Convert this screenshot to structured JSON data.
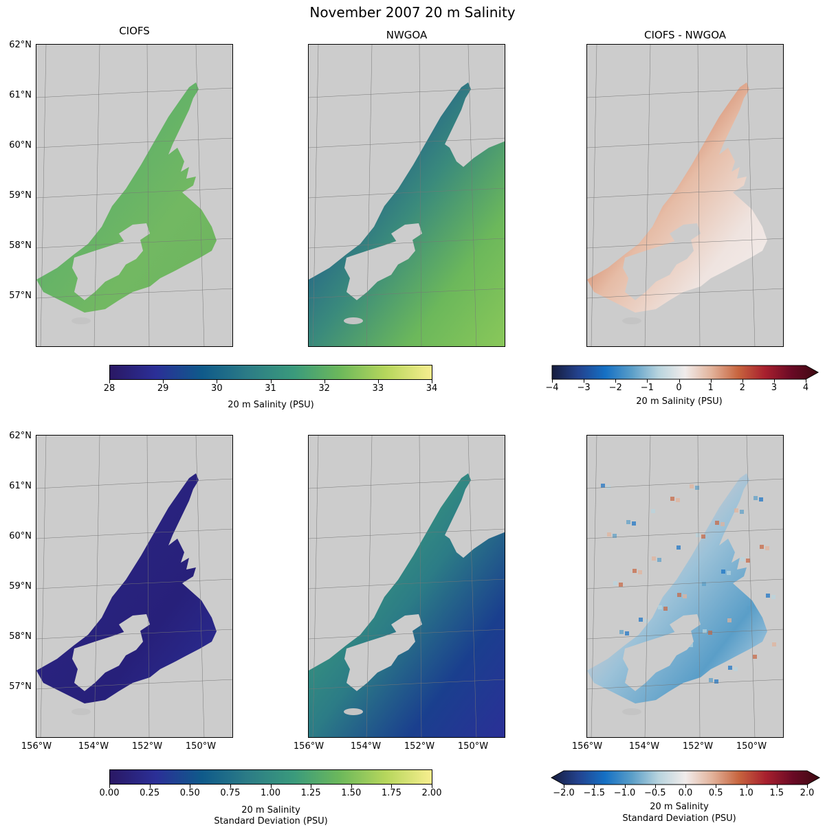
{
  "figure": {
    "title": "November 2007 20 m Salinity",
    "panel_titles": [
      "CIOFS",
      "NWGOA",
      "CIOFS - NWGOA"
    ],
    "lat_ticks": [
      "62°N",
      "61°N",
      "60°N",
      "59°N",
      "58°N",
      "57°N"
    ],
    "lon_ticks": [
      "156°W",
      "154°W",
      "152°W",
      "150°W"
    ],
    "colors": {
      "land": "#cccccc",
      "water_mask": "#ffffff"
    }
  },
  "chart_data": [
    {
      "type": "heatmap",
      "title": "CIOFS",
      "row": "mean",
      "field": "20 m Salinity",
      "colormap": "haline",
      "clim": [
        28,
        34
      ],
      "ylim": [
        56.4,
        62
      ],
      "xlim": [
        -156,
        -149
      ]
    },
    {
      "type": "heatmap",
      "title": "NWGOA",
      "row": "mean",
      "field": "20 m Salinity",
      "colormap": "haline",
      "clim": [
        28,
        34
      ],
      "ylim": [
        56.4,
        62
      ],
      "xlim": [
        -156,
        -149
      ]
    },
    {
      "type": "heatmap",
      "title": "CIOFS - NWGOA",
      "row": "mean",
      "field": "20 m Salinity difference",
      "colormap": "balance",
      "clim": [
        -4,
        4
      ],
      "ylim": [
        56.4,
        62
      ],
      "xlim": [
        -156,
        -149
      ]
    },
    {
      "type": "heatmap",
      "title": "",
      "row": "std",
      "field": "20 m Salinity Standard Deviation (CIOFS)",
      "colormap": "haline",
      "clim": [
        0,
        2
      ],
      "ylim": [
        56.4,
        62
      ],
      "xlim": [
        -156,
        -149
      ]
    },
    {
      "type": "heatmap",
      "title": "",
      "row": "std",
      "field": "20 m Salinity Standard Deviation (NWGOA)",
      "colormap": "haline",
      "clim": [
        0,
        2
      ],
      "ylim": [
        56.4,
        62
      ],
      "xlim": [
        -156,
        -149
      ]
    },
    {
      "type": "heatmap",
      "title": "",
      "row": "std",
      "field": "20 m Salinity Standard Deviation difference",
      "colormap": "balance",
      "clim": [
        -2,
        2
      ],
      "ylim": [
        56.4,
        62
      ],
      "xlim": [
        -156,
        -149
      ]
    }
  ],
  "colorbars": {
    "mean_salinity": {
      "label": "20 m Salinity (PSU)",
      "ticks": [
        "28",
        "29",
        "30",
        "31",
        "32",
        "33",
        "34"
      ],
      "colors": [
        "#2a1864",
        "#2b2f97",
        "#0f5a8a",
        "#2c7c86",
        "#3a9a7c",
        "#6cb85b",
        "#b6d65c",
        "#f7ee8f"
      ]
    },
    "diff_salinity": {
      "label": "20 m Salinity (PSU)",
      "ticks": [
        "−4",
        "−3",
        "−2",
        "−1",
        "0",
        "1",
        "2",
        "3",
        "4"
      ],
      "extend": "max",
      "colors": [
        "#161c3c",
        "#23428e",
        "#1570c4",
        "#5a9ec8",
        "#b8d4de",
        "#f1eceb",
        "#e2b29a",
        "#c7643e",
        "#a8202e",
        "#6a0a25",
        "#3c0911"
      ]
    },
    "std_salinity": {
      "label_line1": "20 m Salinity",
      "label_line2": "Standard Deviation (PSU)",
      "ticks": [
        "0.00",
        "0.25",
        "0.50",
        "0.75",
        "1.00",
        "1.25",
        "1.50",
        "1.75",
        "2.00"
      ],
      "colors": [
        "#2a1864",
        "#2b2f97",
        "#0f5a8a",
        "#2c7c86",
        "#3a9a7c",
        "#6cb85b",
        "#b6d65c",
        "#f7ee8f"
      ]
    },
    "diff_std": {
      "label_line1": "20 m Salinity",
      "label_line2": "Standard Deviation (PSU)",
      "ticks": [
        "−2.0",
        "−1.5",
        "−1.0",
        "−0.5",
        "0.0",
        "0.5",
        "1.0",
        "1.5",
        "2.0"
      ],
      "extend": "both",
      "colors": [
        "#161c3c",
        "#23428e",
        "#1570c4",
        "#5a9ec8",
        "#b8d4de",
        "#f1eceb",
        "#e2b29a",
        "#c7643e",
        "#a8202e",
        "#6a0a25",
        "#3c0911"
      ]
    }
  }
}
